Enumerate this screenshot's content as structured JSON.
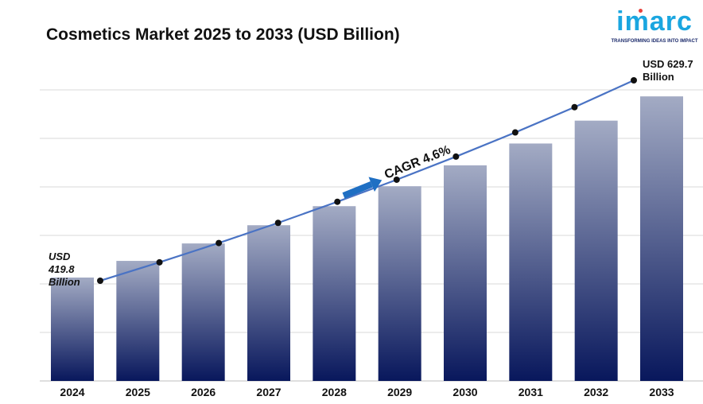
{
  "title": "Cosmetics Market 2025 to 2033 (USD Billion)",
  "logo": {
    "word": "imarc",
    "tagline": "TRANSFORMING IDEAS INTO IMPACT",
    "color": "#1aa6e0",
    "dot_color": "#e9423c"
  },
  "colors": {
    "bar_top": "#a3abc4",
    "bar_bottom": "#08175c",
    "line": "#4a73c4",
    "marker": "#111111",
    "arrow": "#1f6fc3",
    "grid": "#d9d9d9"
  },
  "chart_data": {
    "type": "bar",
    "categories": [
      "2024",
      "2025",
      "2026",
      "2027",
      "2028",
      "2029",
      "2030",
      "2031",
      "2032",
      "2033"
    ],
    "values": [
      419.8,
      439.1,
      459.3,
      480.4,
      502.5,
      525.6,
      549.8,
      575.1,
      601.6,
      629.7
    ],
    "trend_line_values": [
      419.8,
      439.1,
      459.3,
      480.4,
      502.5,
      525.6,
      549.8,
      575.1,
      601.6,
      629.7
    ],
    "ylim": [
      300,
      640
    ],
    "grid": true,
    "annotations": {
      "start_label": [
        "USD",
        "419.8",
        "Billion"
      ],
      "end_label": [
        "USD 629.7",
        "Billion"
      ],
      "cagr": "CAGR 4.6%"
    }
  }
}
